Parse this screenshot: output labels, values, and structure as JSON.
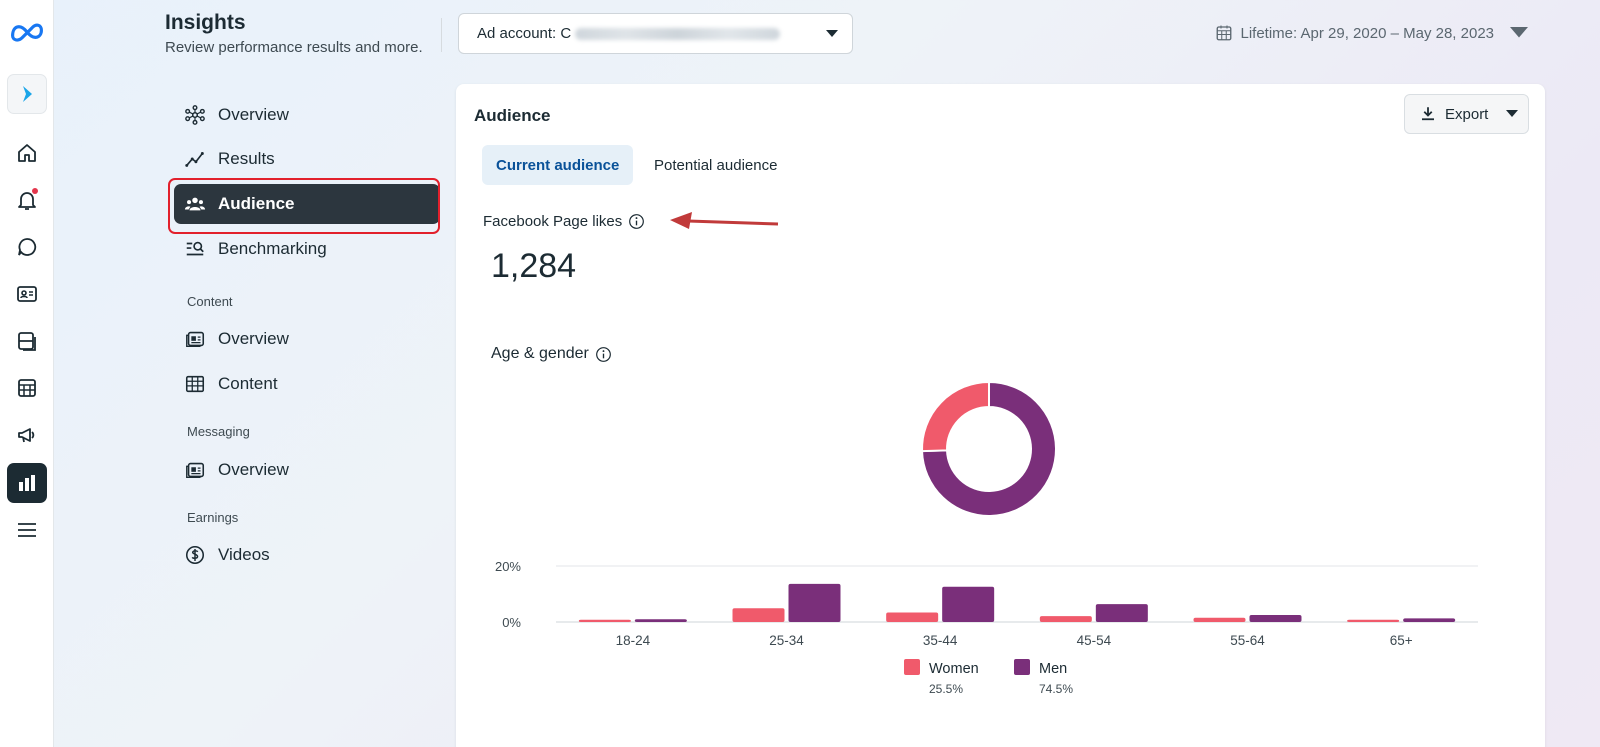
{
  "header": {
    "title": "Insights",
    "subtitle": "Review performance results and more.",
    "ad_account_label": "Ad account: C",
    "date_range": "Lifetime: Apr 29, 2020 – May 28, 2023"
  },
  "rail": {
    "icons": [
      "meta-logo-icon",
      "pages-app-icon",
      "home-icon",
      "notifications-icon",
      "messages-icon",
      "contact-card-icon",
      "content-icon",
      "planner-icon",
      "ads-megaphone-icon",
      "insights-chart-icon",
      "menu-icon"
    ]
  },
  "nav": {
    "items": [
      {
        "label": "Overview"
      },
      {
        "label": "Results"
      },
      {
        "label": "Audience"
      },
      {
        "label": "Benchmarking"
      }
    ],
    "content_section": "Content",
    "content_items": [
      {
        "label": "Overview"
      },
      {
        "label": "Content"
      }
    ],
    "messaging_section": "Messaging",
    "messaging_items": [
      {
        "label": "Overview"
      }
    ],
    "earnings_section": "Earnings",
    "earnings_items": [
      {
        "label": "Videos"
      }
    ]
  },
  "card": {
    "title": "Audience",
    "export_label": "Export",
    "tabs": [
      {
        "label": "Current audience",
        "active": true
      },
      {
        "label": "Potential audience",
        "active": false
      }
    ],
    "metric_label": "Facebook Page likes",
    "metric_value": "1,284",
    "section_label": "Age & gender"
  },
  "colors": {
    "women": "#f05a6b",
    "men": "#7a2f7a",
    "accent": "#0a5299",
    "annotation": "#c13a3a"
  },
  "chart_data": [
    {
      "type": "pie",
      "donut": true,
      "labels": [
        "Women",
        "Men"
      ],
      "values": [
        25.5,
        74.5
      ]
    },
    {
      "type": "bar",
      "categories": [
        "18-24",
        "25-34",
        "35-44",
        "45-54",
        "55-64",
        "65+"
      ],
      "series": [
        {
          "name": "Women",
          "values": [
            0.8,
            4.9,
            3.4,
            2.1,
            1.5,
            0.8
          ]
        },
        {
          "name": "Men",
          "values": [
            1.0,
            13.6,
            12.6,
            6.4,
            2.5,
            1.3
          ]
        }
      ],
      "yticks": [
        "0%",
        "20%"
      ],
      "ylim": [
        0,
        20
      ],
      "grid": true,
      "legend": "bottom",
      "legend_entries": [
        {
          "name": "Women",
          "share": "25.5%"
        },
        {
          "name": "Men",
          "share": "74.5%"
        }
      ]
    }
  ]
}
